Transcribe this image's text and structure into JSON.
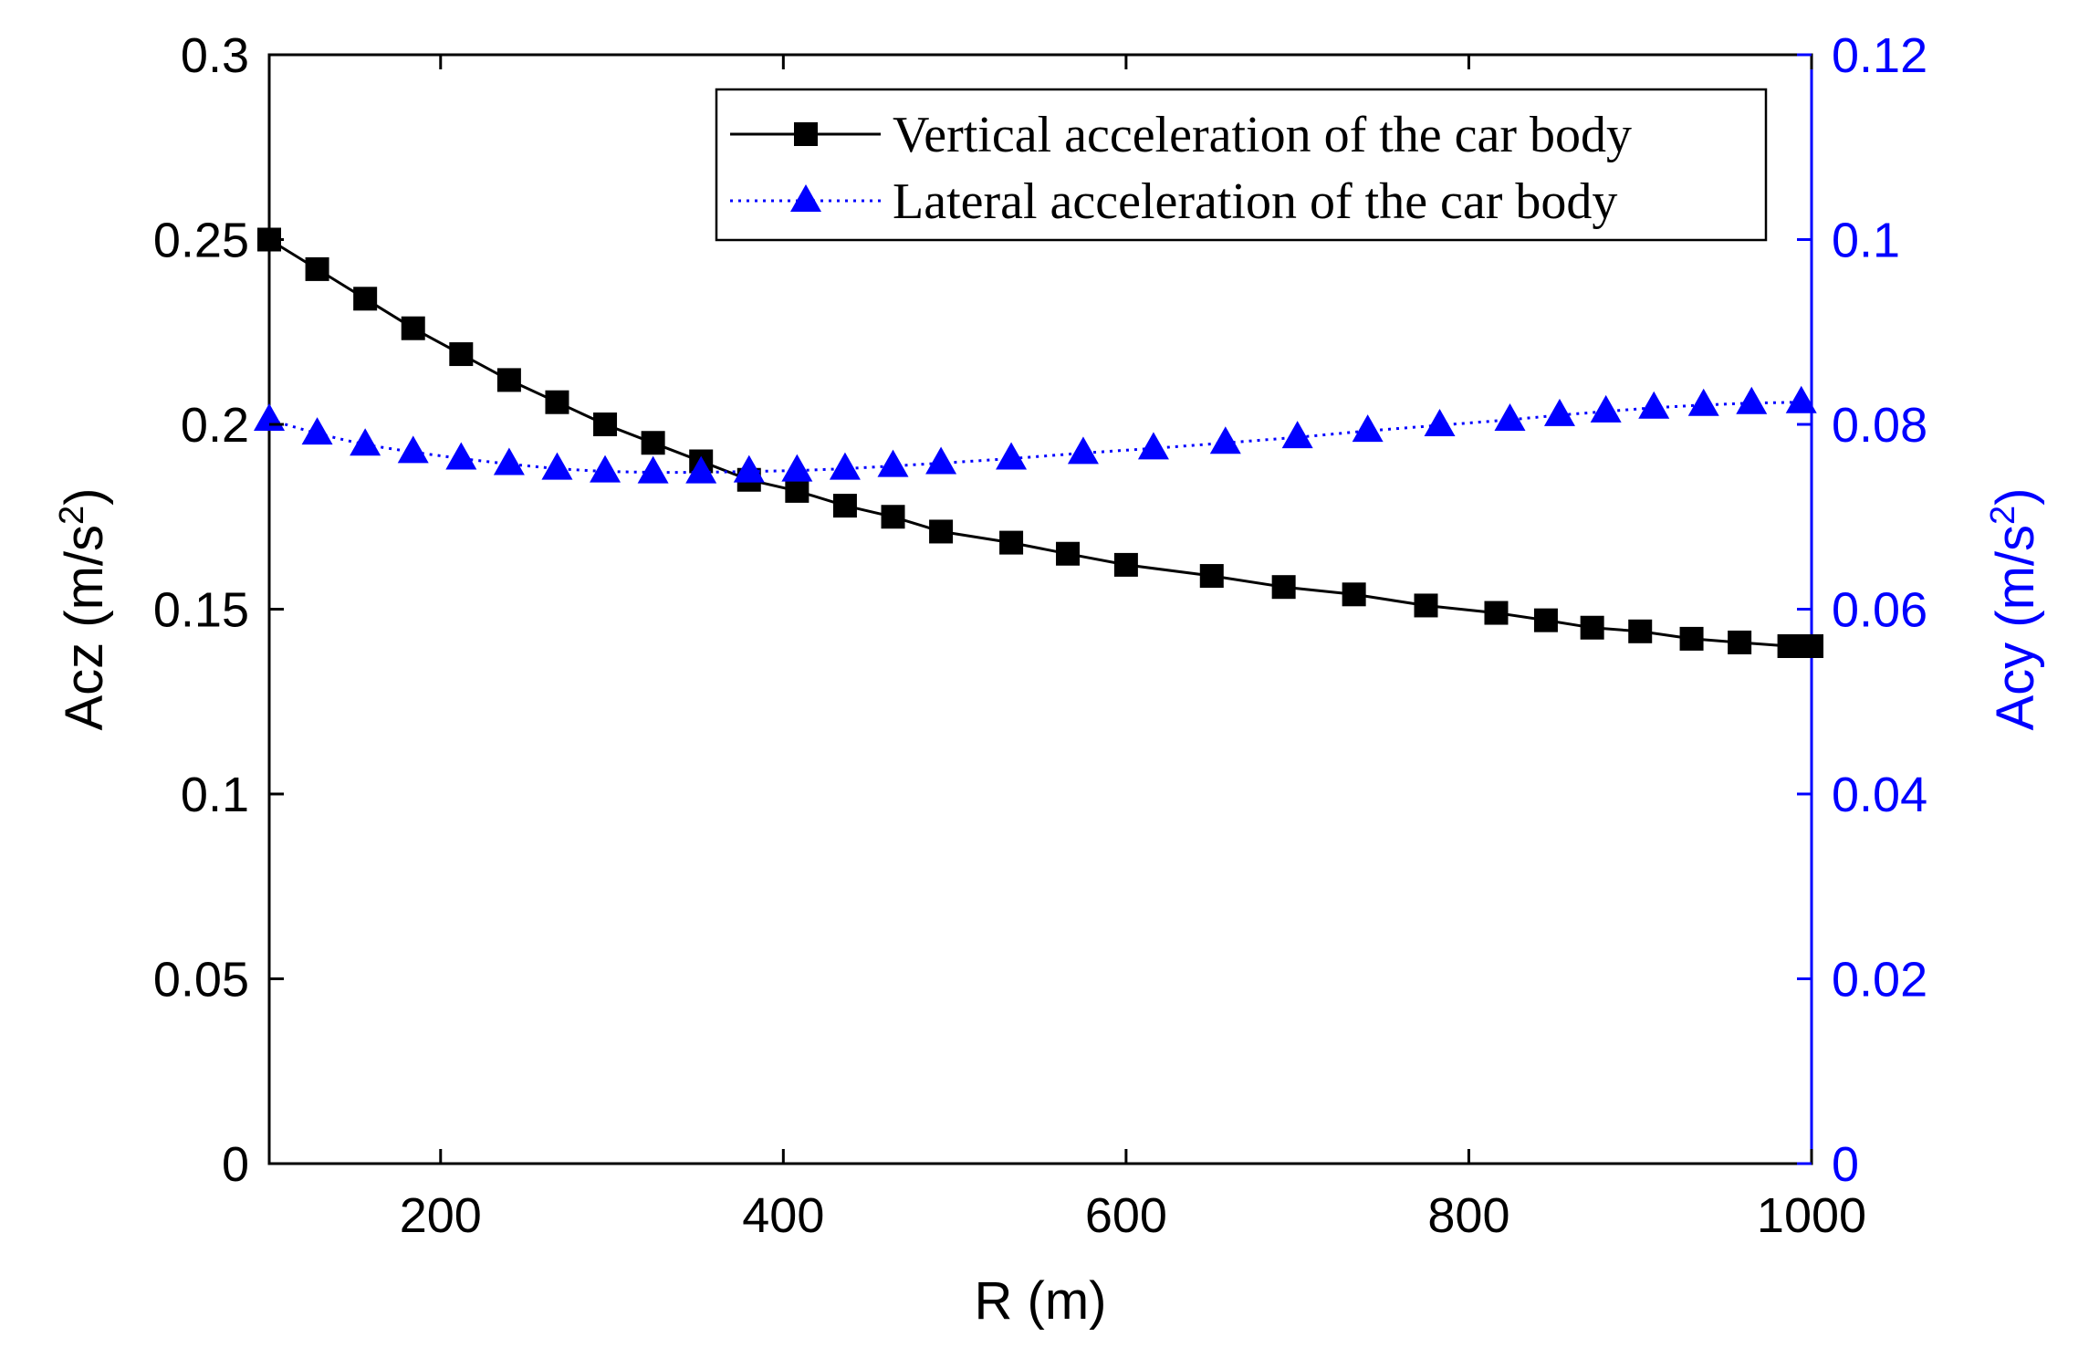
{
  "chart_data": {
    "type": "line",
    "title": "",
    "xlabel": "R (m)",
    "ylabel_left": "Acz (m/s",
    "ylabel_left_sup": "2",
    "ylabel_left_close": ")",
    "ylabel_right": "Acy (m/s",
    "ylabel_right_sup": "2",
    "ylabel_right_close": ")",
    "xlim": [
      100,
      1000
    ],
    "ylim_left": [
      0,
      0.3
    ],
    "ylim_right": [
      0,
      0.12
    ],
    "x_ticks": [
      200,
      400,
      600,
      800,
      1000
    ],
    "x_tick_labels": [
      "200",
      "400",
      "600",
      "800",
      "1000"
    ],
    "y_left_ticks": [
      0,
      0.05,
      0.1,
      0.15,
      0.2,
      0.25,
      0.3
    ],
    "y_left_tick_labels": [
      "0",
      "0.05",
      "0.1",
      "0.15",
      "0.2",
      "0.25",
      "0.3"
    ],
    "y_right_ticks": [
      0,
      0.02,
      0.04,
      0.06,
      0.08,
      0.1,
      0.12
    ],
    "y_right_tick_labels": [
      "0",
      "0.02",
      "0.04",
      "0.06",
      "0.08",
      "0.1",
      "0.12"
    ],
    "grid": false,
    "legend_position": "top-right",
    "axis_colors": {
      "left": "#000000",
      "right": "#0000ff"
    },
    "series": [
      {
        "name": "Vertical acceleration of the car body",
        "axis": "left",
        "color": "#000000",
        "marker": "square",
        "line_style": "solid",
        "x": [
          100,
          128,
          156,
          184,
          212,
          240,
          268,
          296,
          324,
          352,
          380,
          408,
          436,
          464,
          492,
          533,
          566,
          600,
          650,
          692,
          733,
          775,
          816,
          845,
          872,
          900,
          930,
          958,
          987,
          1000
        ],
        "values": [
          0.25,
          0.242,
          0.234,
          0.226,
          0.219,
          0.212,
          0.206,
          0.2,
          0.195,
          0.19,
          0.185,
          0.182,
          0.178,
          0.175,
          0.171,
          0.168,
          0.165,
          0.162,
          0.159,
          0.156,
          0.154,
          0.151,
          0.149,
          0.147,
          0.145,
          0.144,
          0.142,
          0.141,
          0.14,
          0.14
        ]
      },
      {
        "name": "Lateral acceleration of the car body",
        "axis": "right",
        "color": "#0000ff",
        "marker": "triangle",
        "line_style": "dotted",
        "x": [
          100,
          128,
          156,
          184,
          212,
          240,
          268,
          296,
          324,
          352,
          380,
          408,
          436,
          464,
          492,
          533,
          575,
          616,
          658,
          700,
          741,
          783,
          824,
          853,
          880,
          908,
          937,
          965,
          994
        ],
        "values": [
          0.0805,
          0.079,
          0.0778,
          0.077,
          0.0763,
          0.0757,
          0.0752,
          0.0749,
          0.0748,
          0.0748,
          0.0749,
          0.075,
          0.0752,
          0.0755,
          0.0758,
          0.0763,
          0.0769,
          0.0774,
          0.078,
          0.0786,
          0.0793,
          0.0799,
          0.0805,
          0.081,
          0.0814,
          0.0818,
          0.0821,
          0.0823,
          0.0824
        ]
      }
    ]
  }
}
